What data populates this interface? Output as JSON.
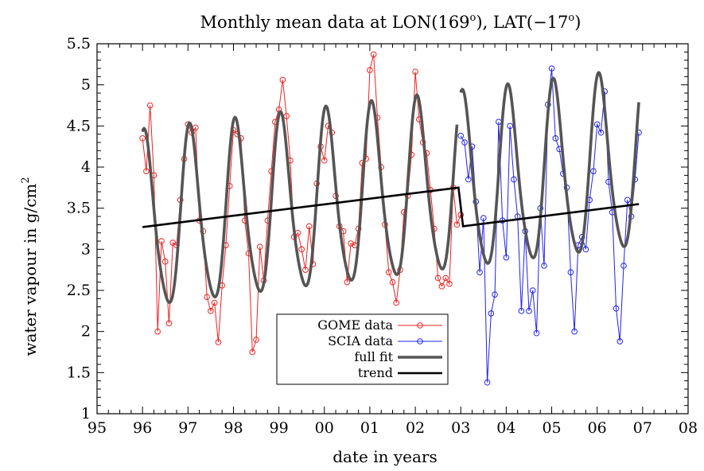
{
  "chart_data": {
    "type": "line",
    "title": {
      "prefix": "Monthly mean data at LON(169",
      "lon_sup": "o",
      "middle": "), LAT(−17",
      "lat_sup": "o",
      "suffix": ")"
    },
    "xlabel": "date in years",
    "ylabel": {
      "main": "water vapour in g/cm",
      "sup": "2"
    },
    "xlim": [
      1995,
      2008
    ],
    "ylim": [
      1,
      5.5
    ],
    "x_ticks": [
      1995,
      1996,
      1997,
      1998,
      1999,
      2000,
      2001,
      2002,
      2003,
      2004,
      2005,
      2006,
      2007,
      2008
    ],
    "x_tick_labels": [
      "95",
      "96",
      "97",
      "98",
      "99",
      "00",
      "01",
      "02",
      "03",
      "04",
      "05",
      "06",
      "07",
      "08"
    ],
    "y_ticks": [
      1,
      1.5,
      2,
      2.5,
      3,
      3.5,
      4,
      4.5,
      5,
      5.5
    ],
    "y_tick_labels": [
      "1",
      "1.5",
      "2",
      "2.5",
      "3",
      "3.5",
      "4",
      "4.5",
      "5",
      "5.5"
    ],
    "grid": false,
    "legend_position": "bottom-center",
    "series": [
      {
        "name": "GOME data",
        "color": "#ee2222",
        "marker": "circle",
        "x": [
          1996.0,
          1996.083,
          1996.167,
          1996.25,
          1996.333,
          1996.417,
          1996.5,
          1996.583,
          1996.667,
          1996.75,
          1996.833,
          1996.917,
          1997.0,
          1997.083,
          1997.167,
          1997.25,
          1997.333,
          1997.417,
          1997.5,
          1997.583,
          1997.667,
          1997.75,
          1997.833,
          1997.917,
          1998.0,
          1998.083,
          1998.167,
          1998.25,
          1998.333,
          1998.417,
          1998.5,
          1998.583,
          1998.667,
          1998.75,
          1998.833,
          1998.917,
          1999.0,
          1999.083,
          1999.167,
          1999.25,
          1999.333,
          1999.417,
          1999.5,
          1999.583,
          1999.667,
          1999.75,
          1999.833,
          1999.917,
          2000.0,
          2000.083,
          2000.167,
          2000.25,
          2000.333,
          2000.417,
          2000.5,
          2000.583,
          2000.667,
          2000.75,
          2000.833,
          2000.917,
          2001.0,
          2001.083,
          2001.167,
          2001.25,
          2001.333,
          2001.417,
          2001.5,
          2001.583,
          2001.667,
          2001.75,
          2001.833,
          2001.917,
          2002.0,
          2002.083,
          2002.167,
          2002.25,
          2002.333,
          2002.417,
          2002.5,
          2002.583,
          2002.667,
          2002.75,
          2002.833,
          2002.917,
          2003.0
        ],
        "y": [
          4.35,
          3.95,
          4.75,
          3.9,
          2.0,
          3.1,
          2.85,
          2.1,
          3.08,
          3.05,
          3.6,
          4.1,
          4.52,
          4.42,
          4.48,
          3.35,
          3.22,
          2.42,
          2.25,
          2.35,
          1.87,
          2.56,
          3.05,
          3.77,
          4.45,
          4.4,
          4.35,
          3.35,
          2.95,
          1.75,
          1.9,
          3.03,
          2.62,
          3.35,
          3.95,
          4.55,
          4.7,
          5.06,
          4.62,
          4.08,
          3.15,
          3.2,
          3.0,
          2.75,
          3.28,
          2.82,
          3.8,
          4.25,
          4.08,
          4.5,
          4.42,
          3.65,
          3.28,
          3.22,
          2.6,
          3.07,
          3.05,
          3.25,
          4.05,
          4.1,
          5.18,
          5.37,
          4.6,
          4.0,
          3.3,
          2.72,
          2.6,
          2.35,
          2.75,
          3.45,
          3.65,
          4.15,
          5.16,
          4.58,
          4.3,
          4.17,
          3.72,
          3.25,
          2.65,
          2.55,
          2.65,
          2.58,
          3.75,
          3.3,
          3.42
        ]
      },
      {
        "name": "SCIA data",
        "color": "#2222ee",
        "marker": "circle",
        "x": [
          2003.0,
          2003.083,
          2003.167,
          2003.25,
          2003.333,
          2003.417,
          2003.5,
          2003.583,
          2003.667,
          2003.75,
          2003.833,
          2003.917,
          2004.0,
          2004.083,
          2004.167,
          2004.25,
          2004.333,
          2004.417,
          2004.5,
          2004.583,
          2004.667,
          2004.75,
          2004.833,
          2004.917,
          2005.0,
          2005.083,
          2005.167,
          2005.25,
          2005.333,
          2005.417,
          2005.5,
          2005.583,
          2005.667,
          2005.75,
          2005.833,
          2005.917,
          2006.0,
          2006.083,
          2006.167,
          2006.25,
          2006.333,
          2006.417,
          2006.5,
          2006.583,
          2006.667,
          2006.75,
          2006.833,
          2006.917
        ],
        "y": [
          4.38,
          4.3,
          3.85,
          4.25,
          3.58,
          2.72,
          3.38,
          1.38,
          2.22,
          2.45,
          4.55,
          3.35,
          2.9,
          4.5,
          3.85,
          3.4,
          2.25,
          3.22,
          2.25,
          2.5,
          1.98,
          3.5,
          2.8,
          4.76,
          5.2,
          4.35,
          4.22,
          3.92,
          3.75,
          2.72,
          2.0,
          3.05,
          3.15,
          3.0,
          3.6,
          3.95,
          4.52,
          4.42,
          4.92,
          3.82,
          3.45,
          2.28,
          1.88,
          2.8,
          3.6,
          3.4,
          3.85,
          4.42
        ]
      },
      {
        "name": "full fit",
        "color": "#555555",
        "marker": "none",
        "model": {
          "segments": [
            {
              "x0": 1996.0,
              "x1": 2002.92,
              "base": 3.28,
              "slope": 0.068,
              "amp_cos": 1.0,
              "amp_sin": 0.35,
              "amp_cos2": 0.15
            },
            {
              "x0": 2003.0,
              "x1": 2006.92,
              "base": 3.28,
              "slope": 0.068,
              "amp_cos": 1.0,
              "amp_sin": 0.35,
              "amp_cos2": 0.15
            }
          ]
        }
      },
      {
        "name": "trend",
        "color": "#000000",
        "marker": "none",
        "x": [
          1996.0,
          2002.95,
          2002.95,
          2003.05,
          2006.92
        ],
        "y": [
          3.27,
          3.75,
          3.75,
          3.28,
          3.55
        ]
      }
    ]
  }
}
